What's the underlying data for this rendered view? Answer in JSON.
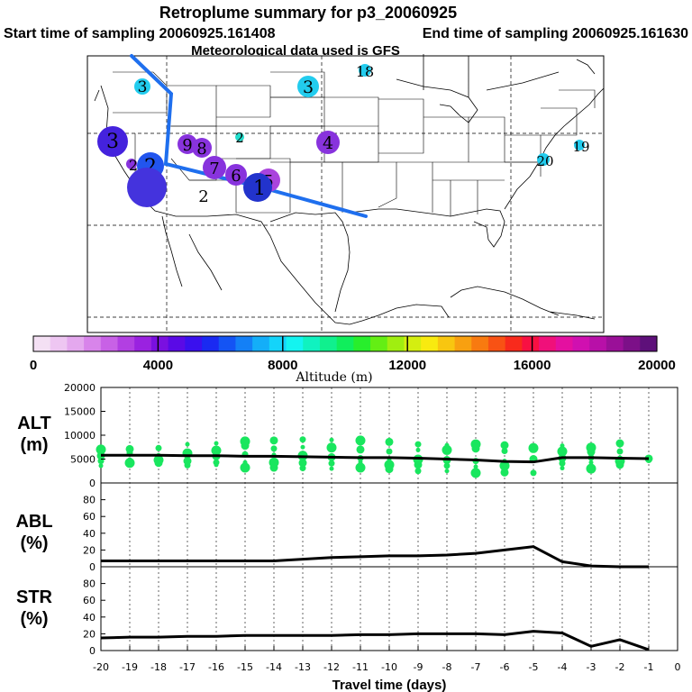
{
  "header": {
    "title": "Retroplume summary for p3_20060925",
    "start": "Start time of sampling 20060925.161408",
    "end": "End time of sampling 20060925.161630",
    "met": "Meteorological data used is GFS"
  },
  "map": {
    "clusters": [
      {
        "label": "3",
        "color": "#22ccee",
        "size": "small",
        "region": "Pacific Northwest"
      },
      {
        "label": "3",
        "color": "#4422dd",
        "size": "medium",
        "region": "Northern California"
      },
      {
        "label": "3",
        "color": "#22ccee",
        "size": "small",
        "region": "Montana"
      },
      {
        "label": "18",
        "color": "#22ccee",
        "size": "small",
        "region": "North Dakota"
      },
      {
        "label": "2",
        "color": "#22ddcc",
        "size": "small",
        "region": "Colorado"
      },
      {
        "label": "4",
        "color": "#8833dd",
        "size": "small",
        "region": "Kansas"
      },
      {
        "label": "9",
        "color": "#8833dd",
        "size": "small",
        "region": "Nevada"
      },
      {
        "label": "8",
        "color": "#8833dd",
        "size": "small",
        "region": "Nevada"
      },
      {
        "label": "2",
        "color": "#8833dd",
        "size": "small",
        "region": "California coast"
      },
      {
        "label": "2",
        "color": "#2255ee",
        "size": "medium",
        "region": "Southern Nevada"
      },
      {
        "label": "7",
        "color": "#8833dd",
        "size": "small",
        "region": "Arizona"
      },
      {
        "label": "6",
        "color": "#8833dd",
        "size": "small",
        "region": "Arizona"
      },
      {
        "label": "5",
        "color": "#aa44dd",
        "size": "small",
        "region": "New Mexico"
      },
      {
        "label": "1",
        "color": "#2233cc",
        "size": "medium",
        "region": "New Mexico"
      },
      {
        "label": "",
        "color": "#4433dd",
        "size": "large",
        "region": "Southern California"
      },
      {
        "label": "2",
        "color": "#000000",
        "size": "none",
        "region": "Arizona"
      },
      {
        "label": "20",
        "color": "#22ccee",
        "size": "small",
        "region": "Virginia"
      },
      {
        "label": "19",
        "color": "#22ccee",
        "size": "small",
        "region": "Atlantic coast"
      }
    ],
    "track_color": "#1f6fee"
  },
  "colorbar": {
    "tick_labels": [
      "0",
      "4000",
      "8000",
      "12000",
      "16000",
      "20000"
    ],
    "label": "Altitude (m)",
    "colors": [
      "#f4e0f4",
      "#eec6f2",
      "#e4a8ee",
      "#d884ea",
      "#c861e6",
      "#b23fe2",
      "#9a22e0",
      "#7a10e0",
      "#5a0ae6",
      "#3a10ee",
      "#1a2af2",
      "#1454f4",
      "#1480f6",
      "#14aef8",
      "#14d4fa",
      "#14f4f0",
      "#10f2c0",
      "#10f08e",
      "#10ee5c",
      "#28ee2c",
      "#64ee14",
      "#a0ee10",
      "#d4ee10",
      "#f8ea10",
      "#f8c610",
      "#f8a010",
      "#f87a10",
      "#f85214",
      "#f82a1c",
      "#f81042",
      "#f0107a",
      "#e410a0",
      "#d010b0",
      "#b810a8",
      "#9a1098",
      "#7c1088",
      "#5e107a"
    ]
  },
  "axes": {
    "alt_label": [
      "ALT",
      "(m)"
    ],
    "abl_label": [
      "ABL",
      "(%)"
    ],
    "str_label": [
      "STR",
      "(%)"
    ],
    "alt_ticks": [
      "20000",
      "15000",
      "10000",
      "5000",
      "0"
    ],
    "pct_ticks": [
      "80",
      "60",
      "40",
      "20",
      "0"
    ],
    "x_ticks": [
      "-20",
      "-19",
      "-18",
      "-17",
      "-16",
      "-15",
      "-14",
      "-13",
      "-12",
      "-11",
      "-10",
      "-9",
      "-8",
      "-7",
      "-6",
      "-5",
      "-4",
      "-3",
      "-2",
      "-1",
      "0"
    ],
    "x_label": "Travel time (days)"
  },
  "chart_data": [
    {
      "type": "line",
      "title": "ALT (m)",
      "xlabel": "Travel time (days)",
      "ylabel": "ALT (m)",
      "xlim": [
        -20,
        0
      ],
      "ylim": [
        0,
        20000
      ],
      "x": [
        -20,
        -19,
        -18,
        -17,
        -16,
        -15,
        -14,
        -13,
        -12,
        -11,
        -10,
        -9,
        -8,
        -7,
        -6,
        -5,
        -4,
        -3,
        -2,
        -1
      ],
      "values": [
        5800,
        5800,
        5800,
        5700,
        5700,
        5600,
        5600,
        5500,
        5400,
        5300,
        5300,
        5200,
        5000,
        4800,
        4500,
        4400,
        5300,
        5300,
        5200,
        5100
      ],
      "scatter_color": "#19e65e",
      "scatter": [
        {
          "x": -20,
          "y": [
            3600,
            4600,
            5700,
            7000
          ]
        },
        {
          "x": -19,
          "y": [
            4200,
            4900,
            6300,
            7100
          ]
        },
        {
          "x": -18,
          "y": [
            4200,
            4800,
            5800,
            7300
          ]
        },
        {
          "x": -17,
          "y": [
            3700,
            4600,
            6200,
            8100
          ]
        },
        {
          "x": -16,
          "y": [
            3800,
            4300,
            5600,
            6800,
            8300
          ]
        },
        {
          "x": -15,
          "y": [
            3200,
            4300,
            6000,
            7800,
            8700
          ]
        },
        {
          "x": -14,
          "y": [
            3200,
            4300,
            5900,
            7200,
            8900
          ]
        },
        {
          "x": -13,
          "y": [
            3100,
            4200,
            5700,
            7500,
            9100
          ]
        },
        {
          "x": -12,
          "y": [
            3000,
            4100,
            5400,
            7400,
            9000
          ]
        },
        {
          "x": -11,
          "y": [
            3200,
            4400,
            5200,
            7000,
            8900
          ]
        },
        {
          "x": -10,
          "y": [
            2900,
            3800,
            5000,
            6600,
            8600
          ]
        },
        {
          "x": -9,
          "y": [
            2500,
            3800,
            4900,
            6900,
            8100
          ]
        },
        {
          "x": -8,
          "y": [
            2500,
            3600,
            4800,
            6900,
            7900
          ]
        },
        {
          "x": -7,
          "y": [
            2100,
            3400,
            4600,
            7200,
            8100
          ]
        },
        {
          "x": -6,
          "y": [
            2200,
            3600,
            4600,
            6700,
            7900
          ]
        },
        {
          "x": -5,
          "y": [
            2100,
            5000,
            7300
          ]
        },
        {
          "x": -4,
          "y": [
            3100,
            4100,
            5200,
            6600,
            7800
          ]
        },
        {
          "x": -3,
          "y": [
            3000,
            4300,
            5300,
            6500,
            7400
          ]
        },
        {
          "x": -2,
          "y": [
            3800,
            4600,
            5300,
            6600,
            8300
          ]
        },
        {
          "x": -1,
          "y": [
            4800,
            5100
          ]
        }
      ]
    },
    {
      "type": "line",
      "title": "ABL (%)",
      "xlabel": "Travel time (days)",
      "ylabel": "ABL (%)",
      "xlim": [
        -20,
        0
      ],
      "ylim": [
        0,
        100
      ],
      "x": [
        -20,
        -19,
        -18,
        -17,
        -16,
        -15,
        -14,
        -13,
        -12,
        -11,
        -10,
        -9,
        -8,
        -7,
        -6,
        -5,
        -4,
        -3,
        -2,
        -1
      ],
      "values": [
        7,
        7,
        7,
        7,
        7,
        7,
        7,
        9,
        11,
        12,
        13,
        13,
        14,
        16,
        20,
        24,
        6,
        1,
        0,
        0
      ]
    },
    {
      "type": "line",
      "title": "STR (%)",
      "xlabel": "Travel time (days)",
      "ylabel": "STR (%)",
      "xlim": [
        -20,
        0
      ],
      "ylim": [
        0,
        100
      ],
      "x": [
        -20,
        -19,
        -18,
        -17,
        -16,
        -15,
        -14,
        -13,
        -12,
        -11,
        -10,
        -9,
        -8,
        -7,
        -6,
        -5,
        -4,
        -3,
        -2,
        -1
      ],
      "values": [
        15,
        16,
        16,
        17,
        17,
        18,
        18,
        18,
        18,
        19,
        19,
        20,
        20,
        20,
        19,
        23,
        21,
        5,
        13,
        1
      ]
    }
  ]
}
